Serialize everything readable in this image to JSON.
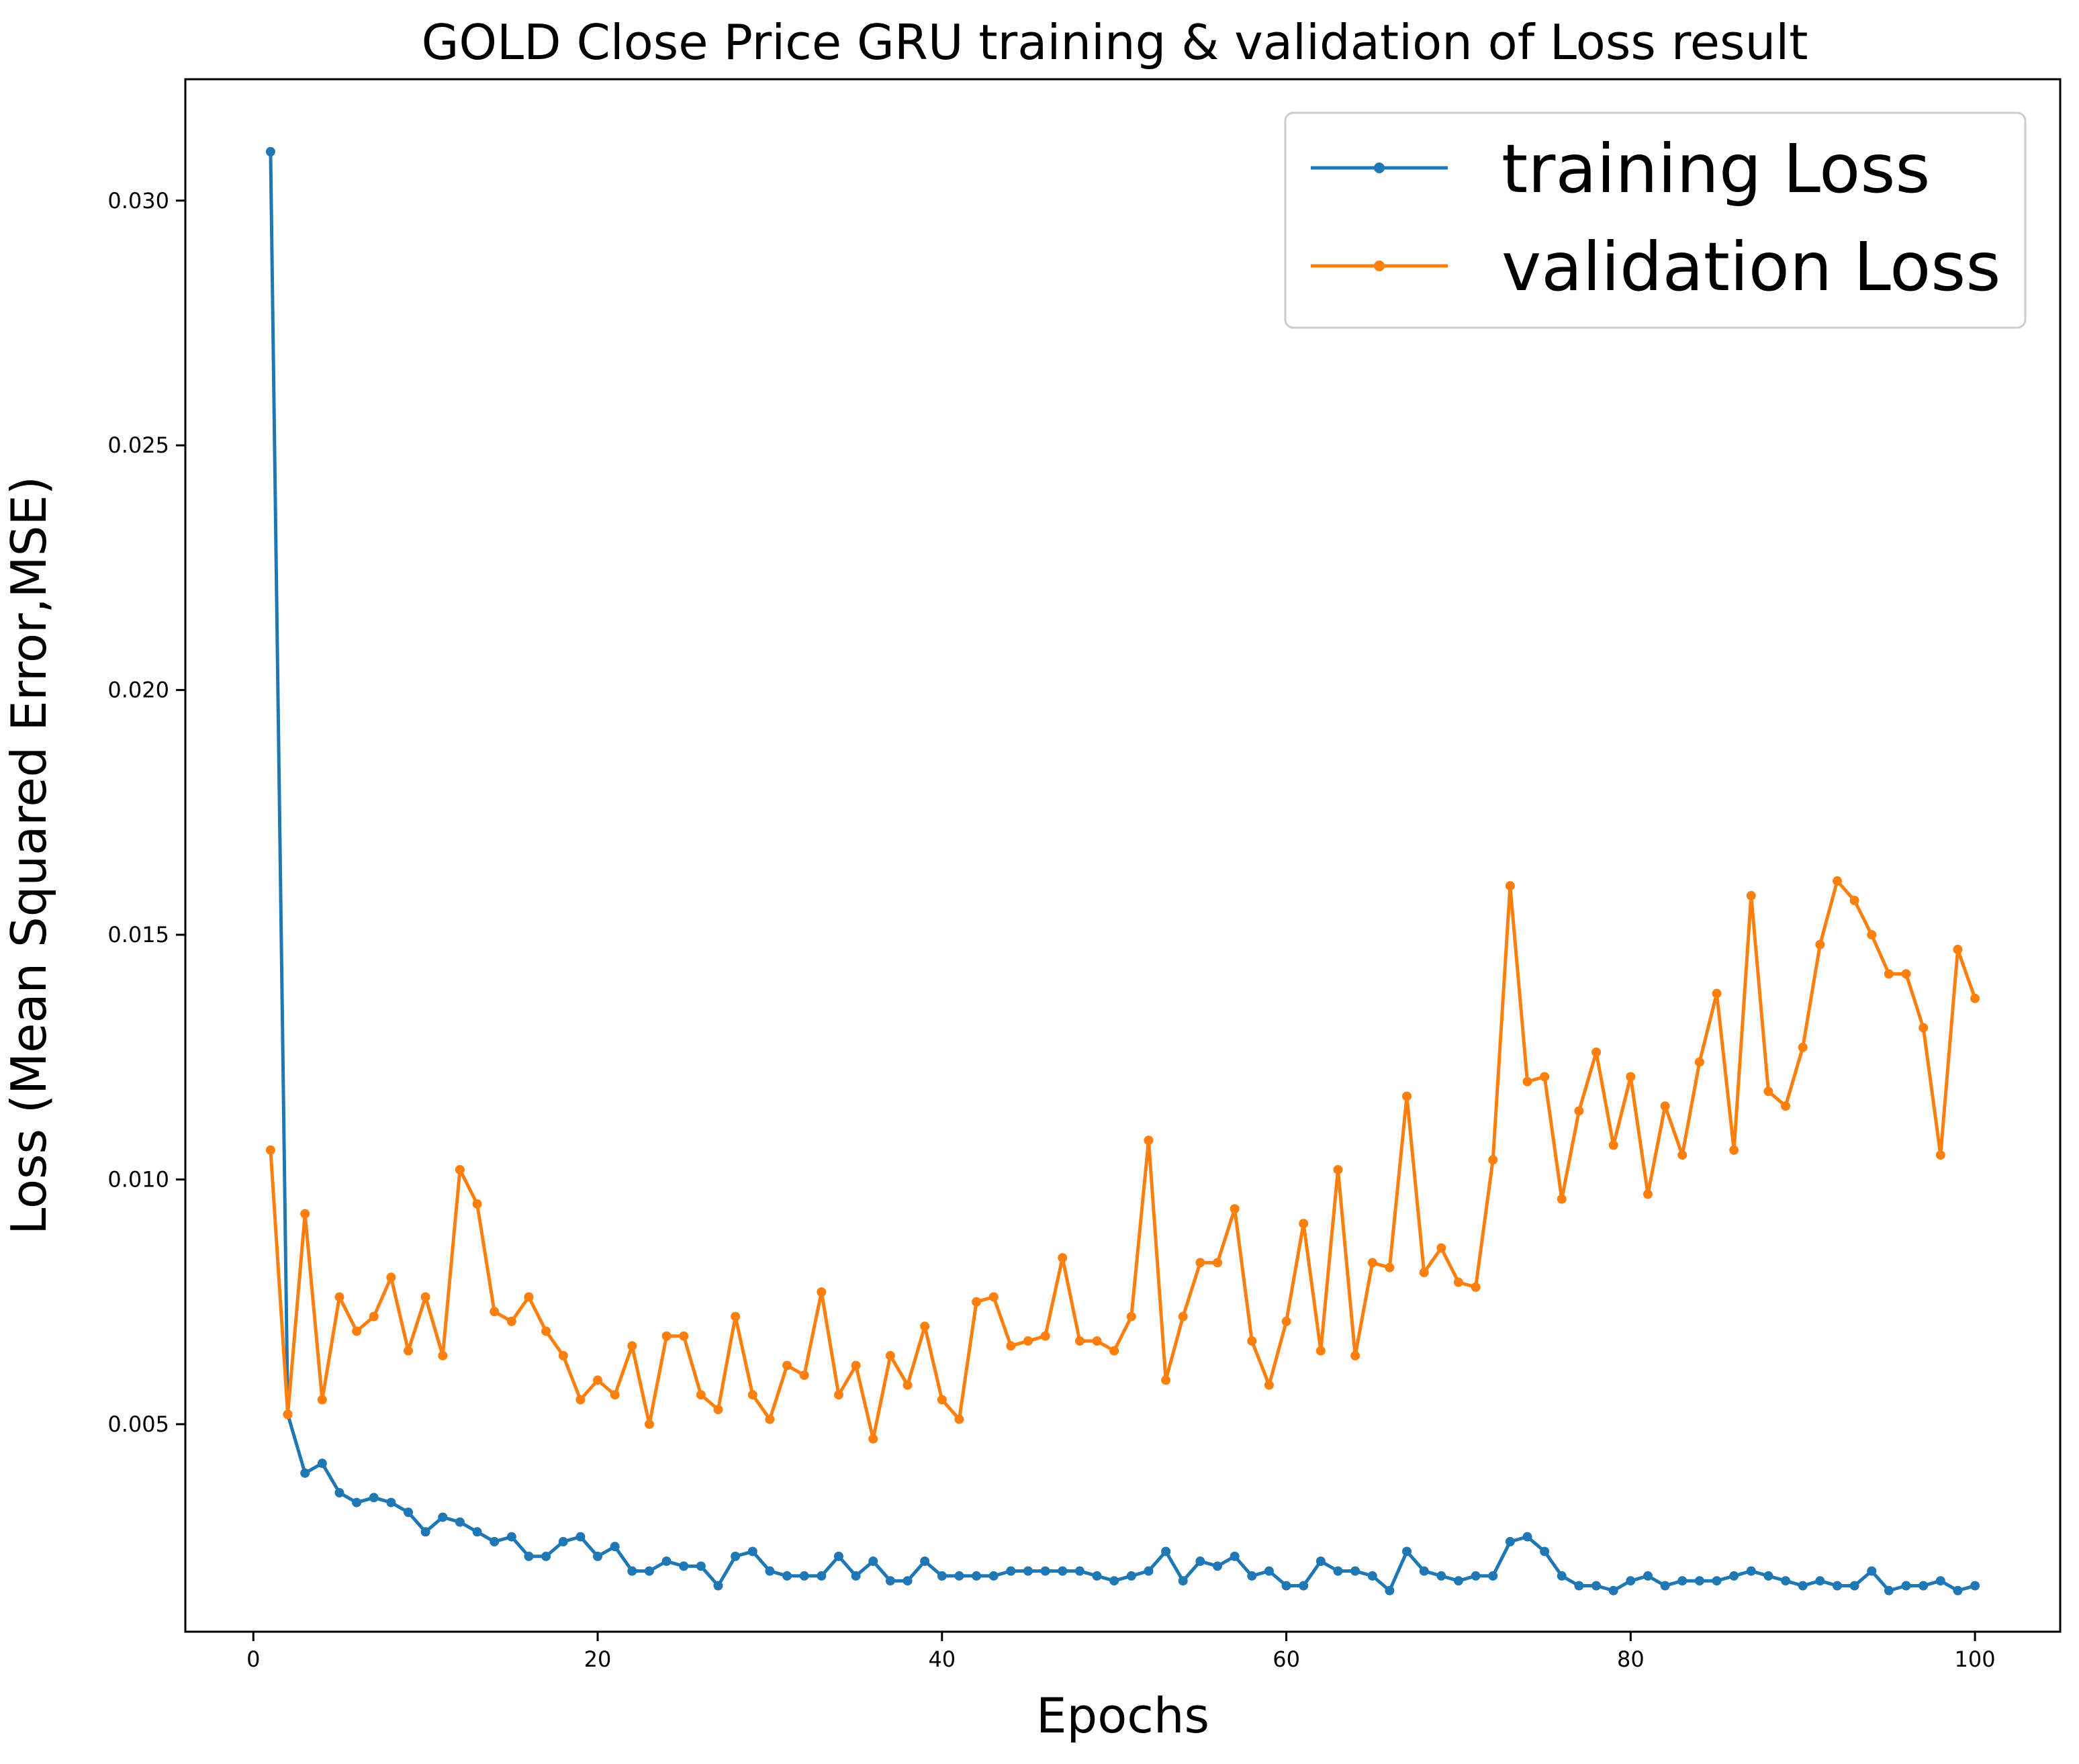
{
  "chart_data": {
    "type": "line",
    "title": "GOLD Close Price GRU training & validation of Loss result",
    "xlabel": "Epochs",
    "ylabel": "Loss (Mean Squared Error,MSE)",
    "xlim": [
      -3.95,
      104.95
    ],
    "ylim": [
      0.00076,
      0.03248
    ],
    "xticks": [
      0,
      20,
      40,
      60,
      80,
      100
    ],
    "xtick_labels": [
      "0",
      "20",
      "40",
      "60",
      "80",
      "100"
    ],
    "yticks": [
      0.005,
      0.01,
      0.015,
      0.02,
      0.025,
      0.03
    ],
    "ytick_labels": [
      "0.005",
      "0.010",
      "0.015",
      "0.020",
      "0.025",
      "0.030"
    ],
    "grid": false,
    "legend_position": "top-right",
    "x": [
      1,
      2,
      3,
      4,
      5,
      6,
      7,
      8,
      9,
      10,
      11,
      12,
      13,
      14,
      15,
      16,
      17,
      18,
      19,
      20,
      21,
      22,
      23,
      24,
      25,
      26,
      27,
      28,
      29,
      30,
      31,
      32,
      33,
      34,
      35,
      36,
      37,
      38,
      39,
      40,
      41,
      42,
      43,
      44,
      45,
      46,
      47,
      48,
      49,
      50,
      51,
      52,
      53,
      54,
      55,
      56,
      57,
      58,
      59,
      60,
      61,
      62,
      63,
      64,
      65,
      66,
      67,
      68,
      69,
      70,
      71,
      72,
      73,
      74,
      75,
      76,
      77,
      78,
      79,
      80,
      81,
      82,
      83,
      84,
      85,
      86,
      87,
      88,
      89,
      90,
      91,
      92,
      93,
      94,
      95,
      96,
      97,
      98,
      99,
      100
    ],
    "series": [
      {
        "name": "training Loss",
        "color": "#1f77b4",
        "values": [
          0.031,
          0.0052,
          0.004,
          0.0042,
          0.0036,
          0.0034,
          0.0035,
          0.0034,
          0.0032,
          0.0028,
          0.0031,
          0.003,
          0.0028,
          0.0026,
          0.0027,
          0.0023,
          0.0023,
          0.0026,
          0.0027,
          0.0023,
          0.0025,
          0.002,
          0.002,
          0.0022,
          0.0021,
          0.0021,
          0.0017,
          0.0023,
          0.0024,
          0.002,
          0.0019,
          0.0019,
          0.0019,
          0.0023,
          0.0019,
          0.0022,
          0.0018,
          0.0018,
          0.0022,
          0.0019,
          0.0019,
          0.0019,
          0.0019,
          0.002,
          0.002,
          0.002,
          0.002,
          0.002,
          0.0019,
          0.0018,
          0.0019,
          0.002,
          0.0024,
          0.0018,
          0.0022,
          0.0021,
          0.0023,
          0.0019,
          0.002,
          0.0017,
          0.0017,
          0.0022,
          0.002,
          0.002,
          0.0019,
          0.0016,
          0.0024,
          0.002,
          0.0019,
          0.0018,
          0.0019,
          0.0019,
          0.0026,
          0.0027,
          0.0024,
          0.0019,
          0.0017,
          0.0017,
          0.0016,
          0.0018,
          0.0019,
          0.0017,
          0.0018,
          0.0018,
          0.0018,
          0.0019,
          0.002,
          0.0019,
          0.0018,
          0.0017,
          0.0018,
          0.0017,
          0.0017,
          0.002,
          0.0016,
          0.0017,
          0.0017,
          0.0018,
          0.0016,
          0.0017
        ]
      },
      {
        "name": "validation Loss",
        "color": "#ff7f0e",
        "values": [
          0.0106,
          0.0052,
          0.0093,
          0.0055,
          0.0076,
          0.0069,
          0.0072,
          0.008,
          0.0065,
          0.0076,
          0.0064,
          0.0102,
          0.0095,
          0.0073,
          0.0071,
          0.0076,
          0.0069,
          0.0064,
          0.0055,
          0.0059,
          0.0056,
          0.0066,
          0.005,
          0.0068,
          0.0068,
          0.0056,
          0.0053,
          0.0072,
          0.0056,
          0.0051,
          0.0062,
          0.006,
          0.0077,
          0.0056,
          0.0062,
          0.0047,
          0.0064,
          0.0058,
          0.007,
          0.0055,
          0.0051,
          0.0075,
          0.0076,
          0.0066,
          0.0067,
          0.0068,
          0.0084,
          0.0067,
          0.0067,
          0.0065,
          0.0072,
          0.0108,
          0.0059,
          0.0072,
          0.0083,
          0.0083,
          0.0094,
          0.0067,
          0.0058,
          0.0071,
          0.0091,
          0.0065,
          0.0102,
          0.0064,
          0.0083,
          0.0082,
          0.0117,
          0.0081,
          0.0086,
          0.0079,
          0.0078,
          0.0104,
          0.016,
          0.012,
          0.0121,
          0.0096,
          0.0114,
          0.0126,
          0.0107,
          0.0121,
          0.0097,
          0.0115,
          0.0105,
          0.0124,
          0.0138,
          0.0106,
          0.0158,
          0.0118,
          0.0115,
          0.0127,
          0.0148,
          0.0161,
          0.0157,
          0.015,
          0.0142,
          0.0142,
          0.0131,
          0.0105,
          0.0147,
          0.0137
        ]
      }
    ]
  }
}
